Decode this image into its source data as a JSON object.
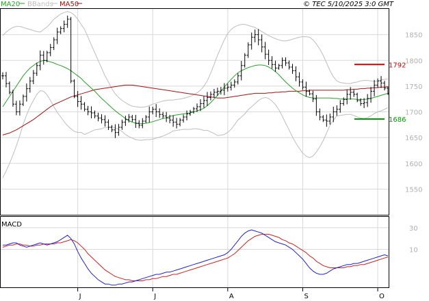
{
  "header": {
    "legend": [
      {
        "label": "MA20",
        "color": "#2a9d2a"
      },
      {
        "label": "BBands",
        "color": "#bdbdbd"
      },
      {
        "label": "MA50",
        "color": "#a01010"
      }
    ],
    "copyright": "© TEC 5/10/2025 3:0 GMT"
  },
  "chart_data": [
    {
      "type": "ohlc",
      "panel": "price",
      "ylim": [
        1500,
        1900
      ],
      "yticks": [
        1550,
        1600,
        1650,
        1700,
        1750,
        1800,
        1850
      ],
      "x_month_labels": [
        {
          "label": "J",
          "index": 22
        },
        {
          "label": "J",
          "index": 44
        },
        {
          "label": "A",
          "index": 66
        },
        {
          "label": "S",
          "index": 88
        },
        {
          "label": "O",
          "index": 110
        }
      ],
      "resistance": {
        "value": 1792,
        "label": "1792",
        "color": "#cc0000"
      },
      "support": {
        "value": 1686,
        "label": "1686",
        "color": "#009900"
      },
      "close": [
        1770,
        1755,
        1738,
        1715,
        1700,
        1715,
        1730,
        1745,
        1760,
        1775,
        1790,
        1810,
        1800,
        1815,
        1825,
        1840,
        1855,
        1862,
        1870,
        1880,
        1760,
        1730,
        1720,
        1715,
        1705,
        1700,
        1698,
        1692,
        1688,
        1685,
        1680,
        1670,
        1665,
        1660,
        1670,
        1680,
        1685,
        1690,
        1685,
        1678,
        1674,
        1682,
        1690,
        1700,
        1705,
        1700,
        1695,
        1692,
        1688,
        1684,
        1680,
        1676,
        1684,
        1690,
        1696,
        1700,
        1706,
        1710,
        1716,
        1722,
        1728,
        1734,
        1738,
        1740,
        1742,
        1746,
        1748,
        1752,
        1758,
        1770,
        1790,
        1810,
        1830,
        1845,
        1850,
        1840,
        1826,
        1812,
        1800,
        1792,
        1785,
        1790,
        1800,
        1795,
        1787,
        1780,
        1768,
        1758,
        1748,
        1740,
        1735,
        1725,
        1700,
        1690,
        1684,
        1682,
        1690,
        1700,
        1705,
        1716,
        1724,
        1734,
        1738,
        1734,
        1722,
        1716,
        1718,
        1726,
        1740,
        1752,
        1760,
        1756,
        1746,
        1736
      ],
      "ma20": [
        1710,
        1720,
        1730,
        1740,
        1750,
        1760,
        1770,
        1778,
        1785,
        1790,
        1795,
        1798,
        1800,
        1799,
        1797,
        1795,
        1792,
        1790,
        1787,
        1784,
        1780,
        1775,
        1770,
        1765,
        1758,
        1752,
        1746,
        1740,
        1733,
        1726,
        1720,
        1714,
        1708,
        1702,
        1697,
        1692,
        1687,
        1683,
        1680,
        1678,
        1677,
        1677,
        1678,
        1679,
        1681,
        1683,
        1685,
        1687,
        1689,
        1691,
        1693,
        1694,
        1695,
        1696,
        1697,
        1698,
        1700,
        1702,
        1704,
        1707,
        1712,
        1718,
        1725,
        1732,
        1740,
        1748,
        1756,
        1763,
        1770,
        1776,
        1780,
        1783,
        1786,
        1788,
        1790,
        1791,
        1791,
        1790,
        1787,
        1783,
        1778,
        1772,
        1765,
        1758,
        1752,
        1746,
        1741,
        1737,
        1733,
        1730,
        1728,
        1727,
        1727,
        1727,
        1727,
        1727,
        1727,
        1726,
        1726,
        1725,
        1725,
        1725,
        1725,
        1725,
        1724,
        1724,
        1724,
        1725,
        1726,
        1728,
        1730,
        1732,
        1734,
        1736
      ],
      "ma50": [
        1655,
        1657,
        1659,
        1662,
        1665,
        1669,
        1673,
        1677,
        1681,
        1685,
        1690,
        1695,
        1700,
        1705,
        1710,
        1714,
        1717,
        1720,
        1723,
        1726,
        1729,
        1731,
        1733,
        1735,
        1737,
        1739,
        1741,
        1743,
        1744,
        1745,
        1746,
        1747,
        1748,
        1749,
        1750,
        1751,
        1752,
        1752,
        1752,
        1751,
        1750,
        1749,
        1748,
        1747,
        1746,
        1745,
        1744,
        1743,
        1742,
        1741,
        1740,
        1739,
        1738,
        1737,
        1736,
        1735,
        1734,
        1733,
        1732,
        1731,
        1730,
        1729,
        1728,
        1727,
        1727,
        1727,
        1728,
        1729,
        1730,
        1731,
        1732,
        1733,
        1734,
        1735,
        1736,
        1736,
        1736,
        1736,
        1737,
        1737,
        1738,
        1738,
        1739,
        1739,
        1740,
        1740,
        1740,
        1740,
        1741,
        1741,
        1742,
        1742,
        1742,
        1742,
        1742,
        1742,
        1742,
        1742,
        1742,
        1742,
        1742,
        1743,
        1743,
        1744,
        1744,
        1745,
        1745,
        1746,
        1746,
        1747,
        1747,
        1748,
        1748,
        1749
      ],
      "bb_upper": [
        1848,
        1855,
        1860,
        1864,
        1866,
        1866,
        1864,
        1862,
        1860,
        1858,
        1856,
        1855,
        1860,
        1865,
        1872,
        1880,
        1885,
        1890,
        1893,
        1895,
        1893,
        1888,
        1880,
        1870,
        1860,
        1845,
        1830,
        1815,
        1800,
        1785,
        1770,
        1758,
        1745,
        1735,
        1728,
        1722,
        1718,
        1714,
        1711,
        1710,
        1709,
        1709,
        1710,
        1712,
        1715,
        1717,
        1719,
        1721,
        1722,
        1723,
        1723,
        1724,
        1725,
        1726,
        1728,
        1730,
        1733,
        1737,
        1742,
        1750,
        1760,
        1775,
        1792,
        1810,
        1825,
        1840,
        1852,
        1860,
        1865,
        1868,
        1870,
        1870,
        1868,
        1866,
        1864,
        1860,
        1856,
        1852,
        1848,
        1845,
        1842,
        1840,
        1838,
        1838,
        1839,
        1841,
        1843,
        1845,
        1846,
        1846,
        1845,
        1840,
        1832,
        1822,
        1810,
        1795,
        1780,
        1768,
        1760,
        1757,
        1756,
        1755,
        1755,
        1757,
        1758,
        1760,
        1761,
        1761,
        1760,
        1759,
        1760,
        1762,
        1763,
        1764
      ],
      "bb_lower": [
        1572,
        1585,
        1600,
        1616,
        1634,
        1654,
        1676,
        1694,
        1710,
        1722,
        1734,
        1741,
        1740,
        1733,
        1722,
        1710,
        1699,
        1690,
        1681,
        1673,
        1667,
        1662,
        1660,
        1660,
        1656,
        1659,
        1662,
        1665,
        1666,
        1667,
        1670,
        1670,
        1671,
        1669,
        1666,
        1662,
        1656,
        1652,
        1649,
        1646,
        1645,
        1645,
        1646,
        1646,
        1647,
        1649,
        1651,
        1653,
        1656,
        1659,
        1663,
        1664,
        1665,
        1666,
        1666,
        1666,
        1667,
        1667,
        1666,
        1664,
        1664,
        1661,
        1658,
        1654,
        1655,
        1656,
        1660,
        1666,
        1675,
        1684,
        1690,
        1696,
        1704,
        1710,
        1716,
        1722,
        1726,
        1728,
        1726,
        1721,
        1714,
        1704,
        1692,
        1678,
        1665,
        1651,
        1639,
        1629,
        1620,
        1614,
        1611,
        1614,
        1622,
        1632,
        1644,
        1659,
        1674,
        1684,
        1692,
        1693,
        1694,
        1695,
        1695,
        1693,
        1690,
        1688,
        1687,
        1689,
        1692,
        1697,
        1700,
        1702,
        1705,
        1708
      ]
    },
    {
      "type": "line",
      "panel": "macd",
      "title": "MACD",
      "ylim": [
        -25,
        40
      ],
      "yticks": [
        10,
        30
      ],
      "macd": [
        14,
        14,
        15,
        16,
        16,
        14,
        13,
        12,
        13,
        14,
        15,
        16,
        15,
        14,
        15,
        16,
        17,
        19,
        21,
        23,
        20,
        15,
        8,
        2,
        -3,
        -8,
        -12,
        -15,
        -18,
        -20,
        -22,
        -22,
        -23,
        -23,
        -22,
        -22,
        -21,
        -20,
        -20,
        -19,
        -18,
        -17,
        -16,
        -15,
        -14,
        -13,
        -13,
        -12,
        -11,
        -11,
        -10,
        -9,
        -8,
        -7,
        -6,
        -5,
        -4,
        -3,
        -2,
        -1,
        0,
        1,
        2,
        3,
        4,
        5,
        7,
        10,
        14,
        18,
        22,
        25,
        27,
        28,
        27,
        26,
        25,
        23,
        21,
        19,
        17,
        16,
        15,
        14,
        12,
        10,
        7,
        4,
        1,
        -3,
        -7,
        -10,
        -12,
        -13,
        -13,
        -12,
        -10,
        -8,
        -7,
        -6,
        -5,
        -4,
        -4,
        -3,
        -3,
        -2,
        -1,
        0,
        1,
        2,
        3,
        4,
        5,
        4
      ],
      "signal": [
        12,
        13,
        14,
        14,
        15,
        15,
        14,
        14,
        13,
        13,
        14,
        14,
        15,
        15,
        15,
        15,
        16,
        16,
        17,
        18,
        19,
        18,
        16,
        13,
        10,
        6,
        3,
        0,
        -3,
        -6,
        -9,
        -11,
        -13,
        -15,
        -16,
        -17,
        -18,
        -18,
        -19,
        -19,
        -19,
        -19,
        -18,
        -18,
        -17,
        -17,
        -16,
        -15,
        -15,
        -14,
        -13,
        -13,
        -12,
        -11,
        -10,
        -9,
        -8,
        -7,
        -6,
        -5,
        -4,
        -3,
        -2,
        -1,
        0,
        1,
        2,
        4,
        6,
        9,
        12,
        15,
        18,
        20,
        22,
        23,
        24,
        24,
        24,
        23,
        22,
        21,
        19,
        18,
        16,
        15,
        13,
        11,
        9,
        7,
        4,
        2,
        -1,
        -3,
        -5,
        -6,
        -7,
        -7,
        -7,
        -7,
        -7,
        -6,
        -6,
        -5,
        -5,
        -4,
        -4,
        -3,
        -2,
        -1,
        0,
        1,
        2,
        3
      ]
    }
  ]
}
